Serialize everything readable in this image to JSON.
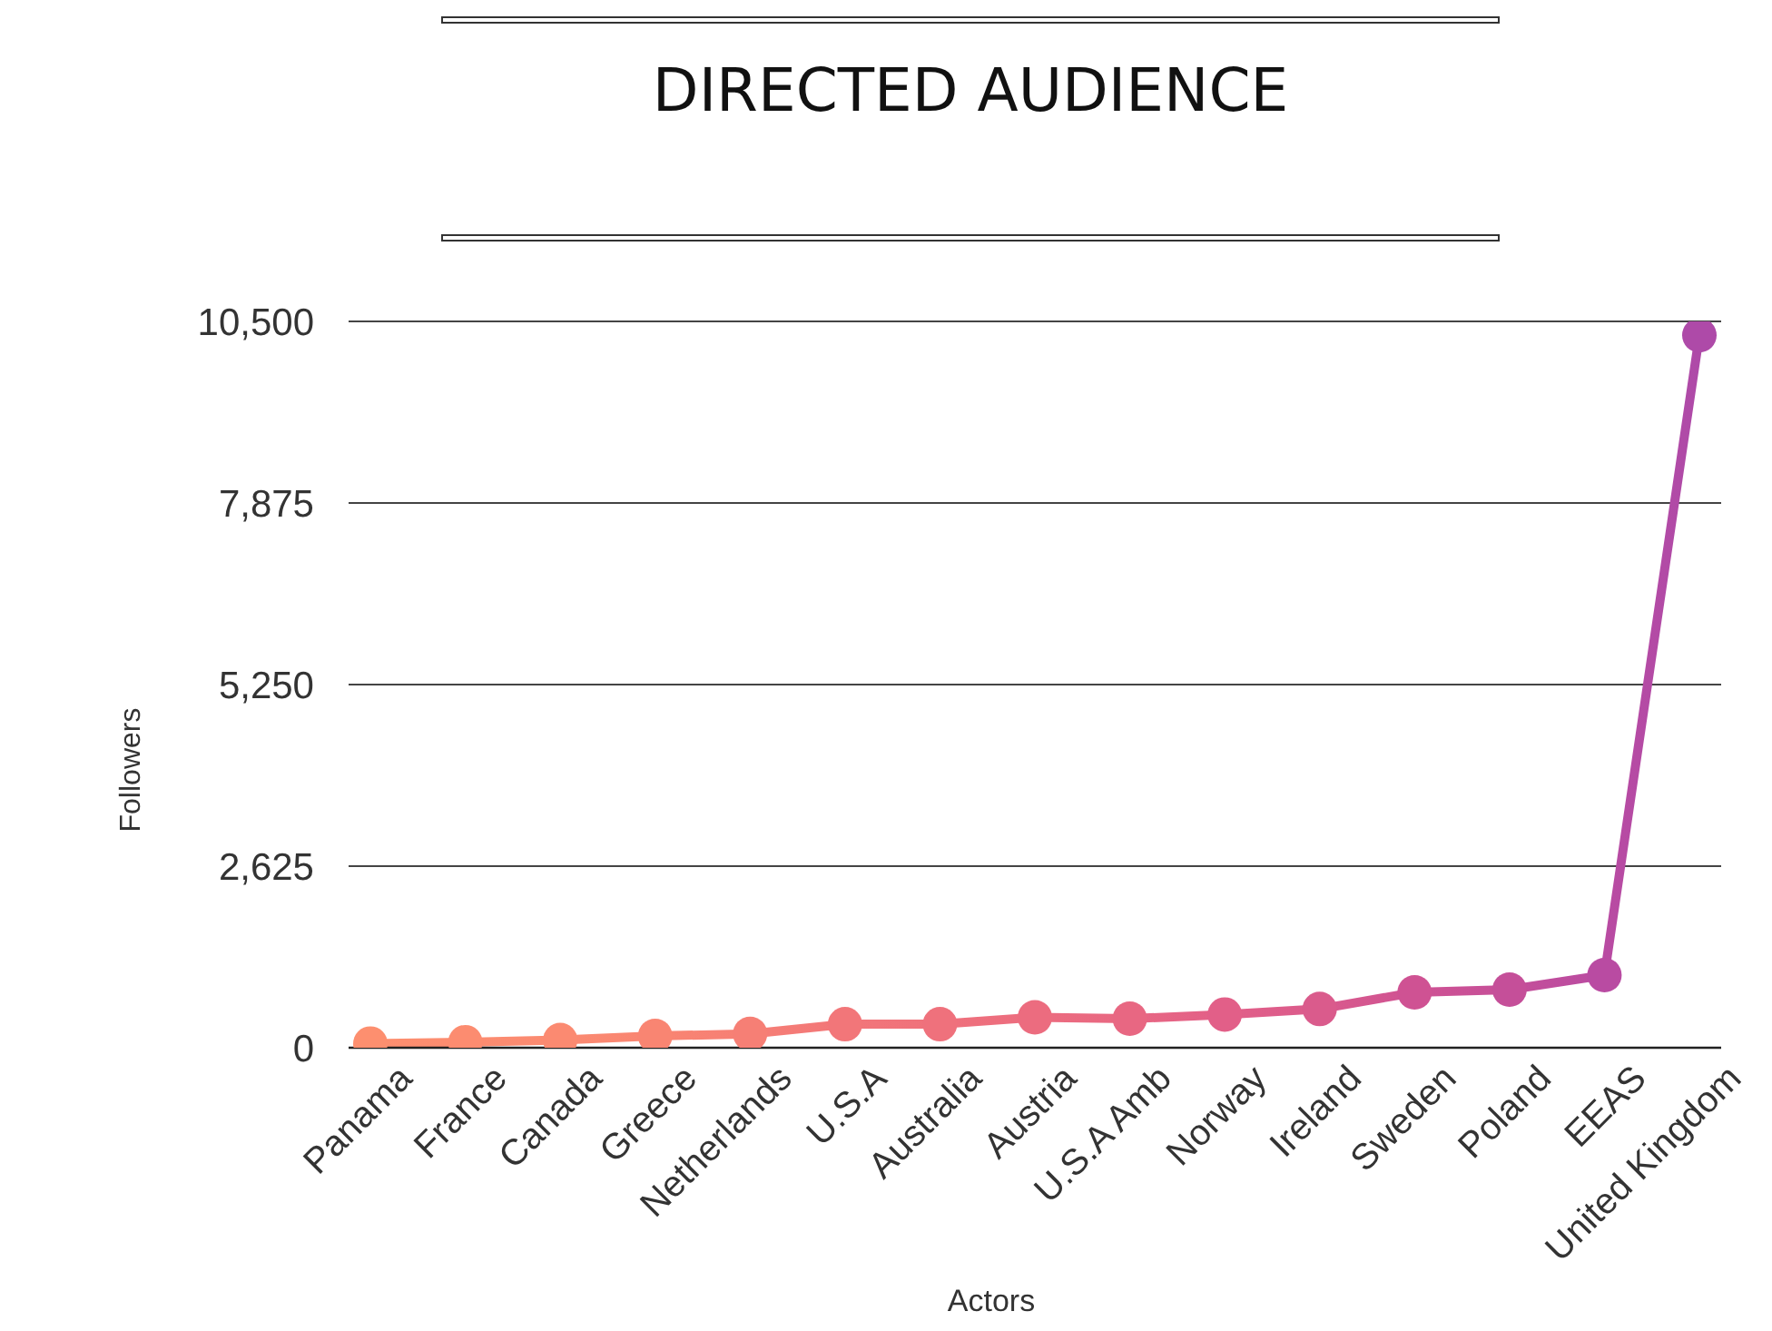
{
  "chart_data": {
    "type": "line",
    "title": "DIRECTED AUDIENCE",
    "xlabel": "Actors",
    "ylabel": "Followers",
    "categories": [
      "Panama",
      "France",
      "Canada",
      "Greece",
      "Netherlands",
      "U.S.A",
      "Australia",
      "Austria",
      "U.S.A Amb",
      "Norway",
      "Ireland",
      "Sweden",
      "Poland",
      "EEAS",
      "United Kingdom"
    ],
    "values": [
      60,
      80,
      110,
      170,
      200,
      340,
      340,
      440,
      420,
      480,
      560,
      800,
      840,
      1050,
      10300
    ],
    "colors": [
      "#fd8f6f",
      "#fc8c70",
      "#fb8a71",
      "#f98572",
      "#f67f75",
      "#f27679",
      "#ef717c",
      "#ec6c7f",
      "#e86782",
      "#e25f88",
      "#da5b8c",
      "#cf5293",
      "#c54f99",
      "#b94ba2",
      "#ae4aa8"
    ],
    "ylim": [
      0,
      10500
    ],
    "yticks": [
      0,
      {
        "value": 2625,
        "label": "2,625"
      },
      {
        "value": 5250,
        "label": "5,250"
      },
      {
        "value": 7875,
        "label": "7,875"
      },
      {
        "value": 10500,
        "label": "10,500"
      }
    ],
    "grid": "y",
    "marker": "circle",
    "line_style": "solid"
  }
}
